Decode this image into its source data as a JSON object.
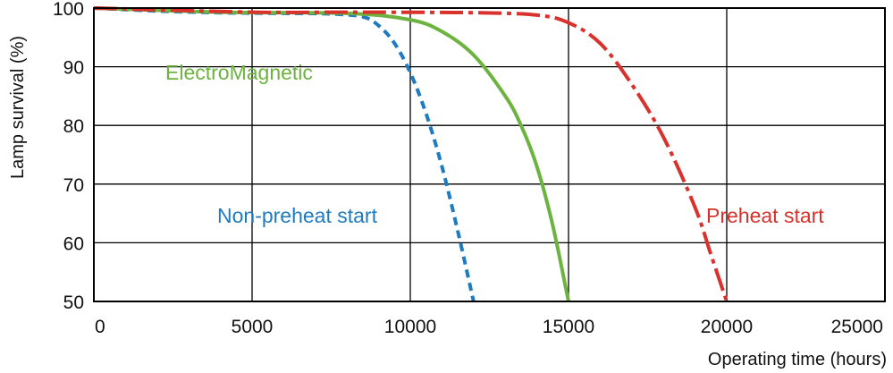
{
  "chart_data": {
    "type": "line",
    "title": "",
    "xlabel": "Operating time (hours)",
    "ylabel": "Lamp survival  (%)",
    "xlim": [
      0,
      25000
    ],
    "ylim": [
      50,
      100
    ],
    "xticks": [
      "0",
      "5000",
      "10000",
      "15000",
      "20000",
      "25000"
    ],
    "yticks": [
      "100",
      "90",
      "80",
      "70",
      "60",
      "50"
    ],
    "grid": true,
    "series": [
      {
        "name": "Non-preheat start",
        "color": "#1f7bbf",
        "style": "dashed",
        "points": [
          [
            0,
            100
          ],
          [
            2000,
            99.5
          ],
          [
            4000,
            99.2
          ],
          [
            6000,
            99.1
          ],
          [
            7500,
            99
          ],
          [
            8500,
            98.5
          ],
          [
            9000,
            97
          ],
          [
            9500,
            94
          ],
          [
            10000,
            89
          ],
          [
            10500,
            82
          ],
          [
            11000,
            73
          ],
          [
            11500,
            62
          ],
          [
            12000,
            50
          ]
        ]
      },
      {
        "name": "ElectroMagnetic",
        "color": "#6cb33f",
        "style": "solid",
        "points": [
          [
            0,
            100
          ],
          [
            4000,
            99.3
          ],
          [
            8000,
            99.1
          ],
          [
            10000,
            98
          ],
          [
            11000,
            96
          ],
          [
            12000,
            92
          ],
          [
            13000,
            85
          ],
          [
            13500,
            80
          ],
          [
            14000,
            73
          ],
          [
            14500,
            63
          ],
          [
            15000,
            50
          ]
        ]
      },
      {
        "name": "Preheat start",
        "color": "#d9312b",
        "style": "dashdot",
        "points": [
          [
            0,
            100
          ],
          [
            5000,
            99.3
          ],
          [
            8000,
            99.3
          ],
          [
            12000,
            99.2
          ],
          [
            14000,
            98.8
          ],
          [
            15000,
            97.5
          ],
          [
            16000,
            94
          ],
          [
            17000,
            87
          ],
          [
            18000,
            78
          ],
          [
            19000,
            66
          ],
          [
            19500,
            58
          ],
          [
            20000,
            50
          ]
        ]
      }
    ]
  }
}
